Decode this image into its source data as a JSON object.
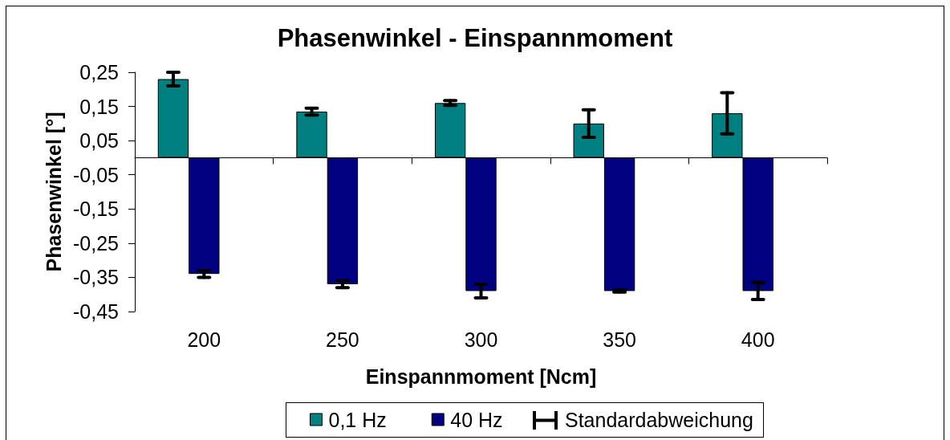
{
  "chart_data": {
    "type": "bar",
    "title": "Phasenwinkel - Einspannmoment",
    "xlabel": "Einspannmoment [Ncm]",
    "ylabel": "Phasenwinkel [°]",
    "categories": [
      "200",
      "250",
      "300",
      "350",
      "400"
    ],
    "series": [
      {
        "name": "0,1 Hz",
        "color": "#008080",
        "values": [
          0.23,
          0.135,
          0.16,
          0.1,
          0.13
        ],
        "errors": [
          0.02,
          0.01,
          0.007,
          0.04,
          0.06
        ]
      },
      {
        "name": "40 Hz",
        "color": "#000080",
        "values": [
          -0.34,
          -0.37,
          -0.39,
          -0.39,
          -0.39
        ],
        "errors": [
          0.01,
          0.01,
          0.02,
          0.003,
          0.025
        ]
      },
      {
        "values": [
          null,
          null,
          null,
          null,
          null
        ]
      }
    ],
    "ylim": [
      -0.45,
      0.25
    ],
    "yticks": [
      {
        "value": -0.45,
        "label": "-0,45"
      },
      {
        "value": -0.35,
        "label": "-0,35"
      },
      {
        "value": -0.25,
        "label": "-0,25"
      },
      {
        "value": -0.15,
        "label": "-0,15"
      },
      {
        "value": -0.05,
        "label": "-0,05"
      },
      {
        "value": 0.05,
        "label": "0,05"
      },
      {
        "value": 0.15,
        "label": "0,15"
      },
      {
        "value": 0.25,
        "label": "0,25"
      }
    ],
    "grid": false,
    "legend": "bottom",
    "annotations": [
      "Standardabweichung"
    ]
  }
}
